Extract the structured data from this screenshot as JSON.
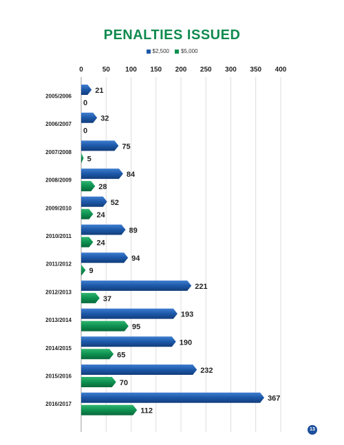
{
  "page": {
    "number": "13"
  },
  "colors": {
    "blue": "#1d58a8",
    "green": "#0e9150",
    "title": "#0f8a4e"
  },
  "chart_data": {
    "type": "bar",
    "orientation": "horizontal",
    "title": "PENALTIES ISSUED",
    "legend_position": "top",
    "grid": true,
    "xlim": [
      0,
      400
    ],
    "x_ticks": [
      0,
      50,
      100,
      150,
      200,
      250,
      300,
      350,
      400
    ],
    "categories": [
      "2005/2006",
      "2006/2007",
      "2007/2008",
      "2008/2009",
      "2009/2010",
      "2010/2011",
      "2011/2012",
      "2012/2013",
      "2013/2014",
      "2014/2015",
      "2015/2016",
      "2016/2017"
    ],
    "series": [
      {
        "name": "$2,500",
        "values": [
          21,
          32,
          75,
          84,
          52,
          89,
          94,
          221,
          193,
          190,
          232,
          367
        ]
      },
      {
        "name": "$5,000",
        "values": [
          0,
          0,
          5,
          28,
          24,
          24,
          9,
          37,
          95,
          65,
          70,
          112
        ]
      }
    ]
  }
}
